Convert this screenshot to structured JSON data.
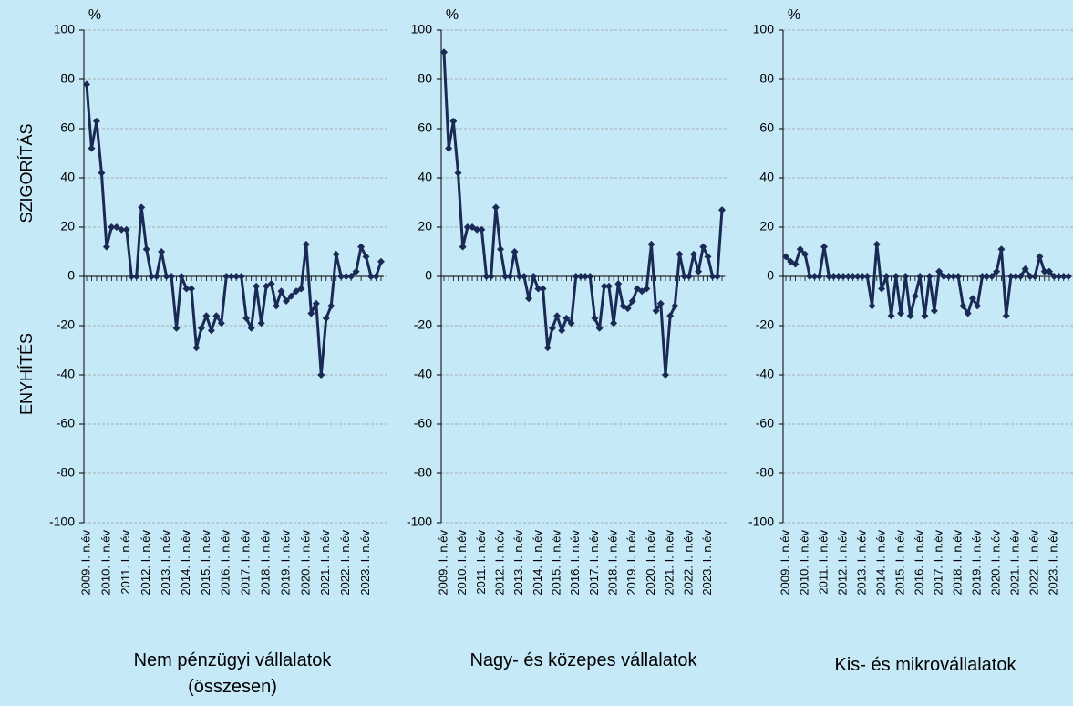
{
  "chart_data": [
    {
      "type": "line",
      "title": "Nem pénzügyi vállalatok (összesen)",
      "unit": "%",
      "annotations": [
        "SZIGORÍTÁS",
        "ENYHÍTÉS"
      ],
      "color": "#1b2a55",
      "ylim": [
        -100,
        100
      ],
      "yticks": [
        -100,
        -80,
        -60,
        -40,
        -20,
        0,
        20,
        40,
        60,
        80,
        100
      ],
      "grid": true,
      "categories": [
        "2009. I. n.év",
        null,
        null,
        null,
        "2010. I. n.év",
        null,
        null,
        null,
        "2011. I. n.év",
        null,
        null,
        null,
        "2012. I. n.év",
        null,
        null,
        null,
        "2013. I. n.év",
        null,
        null,
        null,
        "2014. I. n.év",
        null,
        null,
        null,
        "2015. I. n.év",
        null,
        null,
        null,
        "2016. I. n.év",
        null,
        null,
        null,
        "2017. I. n.év",
        null,
        null,
        null,
        "2018. I. n.év",
        null,
        null,
        null,
        "2019. I. n.év",
        null,
        null,
        null,
        "2020. I. n.év",
        null,
        null,
        null,
        "2021. I. n.év",
        null,
        null,
        null,
        "2022. I. n.év",
        null,
        null,
        null,
        "2023. I. n.év",
        null,
        null,
        null
      ],
      "values": [
        78,
        52,
        63,
        42,
        12,
        20,
        20,
        19,
        19,
        0,
        0,
        28,
        11,
        0,
        0,
        10,
        0,
        0,
        -21,
        0,
        -5,
        -5,
        -29,
        -21,
        -16,
        -22,
        -16,
        -19,
        0,
        0,
        0,
        0,
        -17,
        -21,
        -4,
        -19,
        -4,
        -3,
        -12,
        -6,
        -10,
        -8,
        -6,
        -5,
        13,
        -15,
        -11,
        -40,
        -17,
        -12,
        9,
        0,
        0,
        0,
        2,
        12,
        8,
        0,
        0,
        6
      ]
    },
    {
      "type": "line",
      "title": "Nagy- és közepes vállalatok",
      "unit": "%",
      "color": "#1b2a55",
      "ylim": [
        -100,
        100
      ],
      "yticks": [
        -100,
        -80,
        -60,
        -40,
        -20,
        0,
        20,
        40,
        60,
        80,
        100
      ],
      "grid": true,
      "categories": [
        "2009. I. n.év",
        null,
        null,
        null,
        "2010. I. n.év",
        null,
        null,
        null,
        "2011. I. n.év",
        null,
        null,
        null,
        "2012. I. n.év",
        null,
        null,
        null,
        "2013. I. n.év",
        null,
        null,
        null,
        "2014. I. n.év",
        null,
        null,
        null,
        "2015. I. n.év",
        null,
        null,
        null,
        "2016. I. n.év",
        null,
        null,
        null,
        "2017. I. n.év",
        null,
        null,
        null,
        "2018. I. n.év",
        null,
        null,
        null,
        "2019. I. n.év",
        null,
        null,
        null,
        "2020. I. n.év",
        null,
        null,
        null,
        "2021. I. n.év",
        null,
        null,
        null,
        "2022. I. n.év",
        null,
        null,
        null,
        "2023. I. n.év",
        null,
        null,
        null
      ],
      "values": [
        91,
        52,
        63,
        42,
        12,
        20,
        20,
        19,
        19,
        0,
        0,
        28,
        11,
        0,
        0,
        10,
        0,
        0,
        -9,
        0,
        -5,
        -5,
        -29,
        -21,
        -16,
        -22,
        -17,
        -19,
        0,
        0,
        0,
        0,
        -17,
        -21,
        -4,
        -4,
        -19,
        -3,
        -12,
        -13,
        -10,
        -5,
        -6,
        -5,
        13,
        -14,
        -11,
        -40,
        -16,
        -12,
        9,
        0,
        0,
        9,
        2,
        12,
        8,
        0,
        0,
        27
      ]
    },
    {
      "type": "line",
      "title": "Kis- és mikrovállalatok",
      "unit": "%",
      "color": "#1b2a55",
      "ylim": [
        -100,
        100
      ],
      "yticks": [
        -100,
        -80,
        -60,
        -40,
        -20,
        0,
        20,
        40,
        60,
        80,
        100
      ],
      "grid": true,
      "categories": [
        "2009. I. n.év",
        null,
        null,
        null,
        "2010. I. n.év",
        null,
        null,
        null,
        "2011. I. n.év",
        null,
        null,
        null,
        "2012. I. n.év",
        null,
        null,
        null,
        "2013. I. n.év",
        null,
        null,
        null,
        "2014. I. n.év",
        null,
        null,
        null,
        "2015. I. n.év",
        null,
        null,
        null,
        "2016. I. n.év",
        null,
        null,
        null,
        "2017. I. n.év",
        null,
        null,
        null,
        "2018. I. n.év",
        null,
        null,
        null,
        "2019. I. n.év",
        null,
        null,
        null,
        "2020. I. n.év",
        null,
        null,
        null,
        "2021. I. n.év",
        null,
        null,
        null,
        "2022. I. n.év",
        null,
        null,
        null,
        "2023. I. n.év",
        null,
        null,
        null
      ],
      "values": [
        8,
        6,
        5,
        11,
        9,
        0,
        0,
        0,
        12,
        0,
        0,
        0,
        0,
        0,
        0,
        0,
        0,
        0,
        -12,
        13,
        -5,
        0,
        -16,
        0,
        -15,
        0,
        -16,
        -8,
        0,
        -16,
        0,
        -14,
        2,
        0,
        0,
        0,
        0,
        -12,
        -15,
        -9,
        -12,
        0,
        0,
        0,
        2,
        11,
        -16,
        0,
        0,
        0,
        3,
        0,
        0,
        8,
        2,
        2,
        0,
        0,
        0,
        0
      ]
    }
  ]
}
